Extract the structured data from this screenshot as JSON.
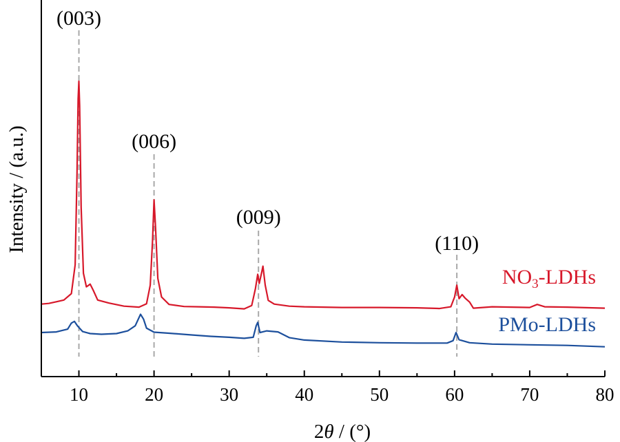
{
  "chart_data": {
    "type": "line",
    "title": "",
    "xlabel_prefix": "2",
    "xlabel_symbol": "θ",
    "xlabel_suffix": " / (°)",
    "ylabel": "Intensity / (a.u.)",
    "xlim": [
      5,
      80
    ],
    "ylim": [
      0,
      100
    ],
    "xticks": [
      10,
      20,
      30,
      40,
      50,
      60,
      70,
      80
    ],
    "xtick_labels": [
      "10",
      "20",
      "30",
      "40",
      "50",
      "60",
      "70",
      "80"
    ],
    "grid": false,
    "legend": "inline-right",
    "reference_lines": [
      {
        "label": "(003)",
        "x": 10
      },
      {
        "label": "(006)",
        "x": 20
      },
      {
        "label": "(009)",
        "x": 33.9
      },
      {
        "label": "(110)",
        "x": 60.3
      }
    ],
    "series": [
      {
        "label_main": "NO",
        "label_sub": "3",
        "label_rest": "-LDHs",
        "color": "#d7182a",
        "points": [
          [
            5,
            21.4
          ],
          [
            6,
            21.6
          ],
          [
            7,
            22.1
          ],
          [
            8,
            22.6
          ],
          [
            9,
            24.5
          ],
          [
            9.5,
            33.0
          ],
          [
            9.75,
            60.0
          ],
          [
            9.9,
            82.0
          ],
          [
            10.0,
            87.2
          ],
          [
            10.1,
            80.0
          ],
          [
            10.3,
            50.0
          ],
          [
            10.6,
            30.5
          ],
          [
            11.0,
            26.5
          ],
          [
            11.5,
            27.3
          ],
          [
            11.9,
            25.5
          ],
          [
            12.5,
            22.6
          ],
          [
            14,
            21.7
          ],
          [
            16,
            20.8
          ],
          [
            18,
            20.5
          ],
          [
            19,
            21.5
          ],
          [
            19.5,
            27.0
          ],
          [
            19.8,
            40.0
          ],
          [
            20.0,
            52.2
          ],
          [
            20.2,
            44.0
          ],
          [
            20.5,
            29.0
          ],
          [
            21.0,
            23.5
          ],
          [
            22,
            21.3
          ],
          [
            24,
            20.7
          ],
          [
            26,
            20.6
          ],
          [
            28,
            20.5
          ],
          [
            30,
            20.3
          ],
          [
            32,
            20.0
          ],
          [
            33,
            21.0
          ],
          [
            33.5,
            26.0
          ],
          [
            33.8,
            30.2
          ],
          [
            34.0,
            27.5
          ],
          [
            34.3,
            30.5
          ],
          [
            34.5,
            32.6
          ],
          [
            34.8,
            27.0
          ],
          [
            35.2,
            22.5
          ],
          [
            36,
            21.4
          ],
          [
            38,
            20.8
          ],
          [
            40,
            20.6
          ],
          [
            45,
            20.4
          ],
          [
            50,
            20.4
          ],
          [
            55,
            20.3
          ],
          [
            58,
            20.1
          ],
          [
            59.5,
            20.6
          ],
          [
            60.0,
            23.5
          ],
          [
            60.3,
            27.0
          ],
          [
            60.6,
            23.0
          ],
          [
            61,
            24.2
          ],
          [
            61.4,
            23.2
          ],
          [
            62,
            22.0
          ],
          [
            62.5,
            20.2
          ],
          [
            65,
            20.6
          ],
          [
            70,
            20.4
          ],
          [
            71,
            21.3
          ],
          [
            72,
            20.6
          ],
          [
            75,
            20.5
          ],
          [
            80,
            20.2
          ]
        ]
      },
      {
        "label_main": "PMo-LDHs",
        "label_sub": "",
        "label_rest": "",
        "color": "#1c4f9c",
        "points": [
          [
            5,
            13.0
          ],
          [
            7,
            13.2
          ],
          [
            8.5,
            14.0
          ],
          [
            9.0,
            15.8
          ],
          [
            9.4,
            16.3
          ],
          [
            9.8,
            15.0
          ],
          [
            10.5,
            13.3
          ],
          [
            11.5,
            12.7
          ],
          [
            13,
            12.5
          ],
          [
            15,
            12.7
          ],
          [
            16.5,
            13.5
          ],
          [
            17.5,
            15.0
          ],
          [
            18.2,
            18.4
          ],
          [
            18.6,
            17.0
          ],
          [
            19.0,
            14.3
          ],
          [
            20,
            13.1
          ],
          [
            22,
            12.8
          ],
          [
            25,
            12.3
          ],
          [
            27.5,
            11.9
          ],
          [
            30,
            11.6
          ],
          [
            32,
            11.3
          ],
          [
            33.2,
            11.6
          ],
          [
            33.6,
            15.0
          ],
          [
            33.8,
            16.0
          ],
          [
            34.1,
            13.0
          ],
          [
            35,
            13.5
          ],
          [
            36.5,
            13.2
          ],
          [
            38,
            11.5
          ],
          [
            40,
            10.8
          ],
          [
            45,
            10.2
          ],
          [
            50,
            10.0
          ],
          [
            55,
            9.9
          ],
          [
            59,
            9.9
          ],
          [
            59.8,
            10.6
          ],
          [
            60.2,
            13.0
          ],
          [
            60.6,
            10.9
          ],
          [
            62,
            10.0
          ],
          [
            65,
            9.6
          ],
          [
            70,
            9.4
          ],
          [
            75,
            9.2
          ],
          [
            80,
            8.8
          ]
        ]
      }
    ]
  }
}
